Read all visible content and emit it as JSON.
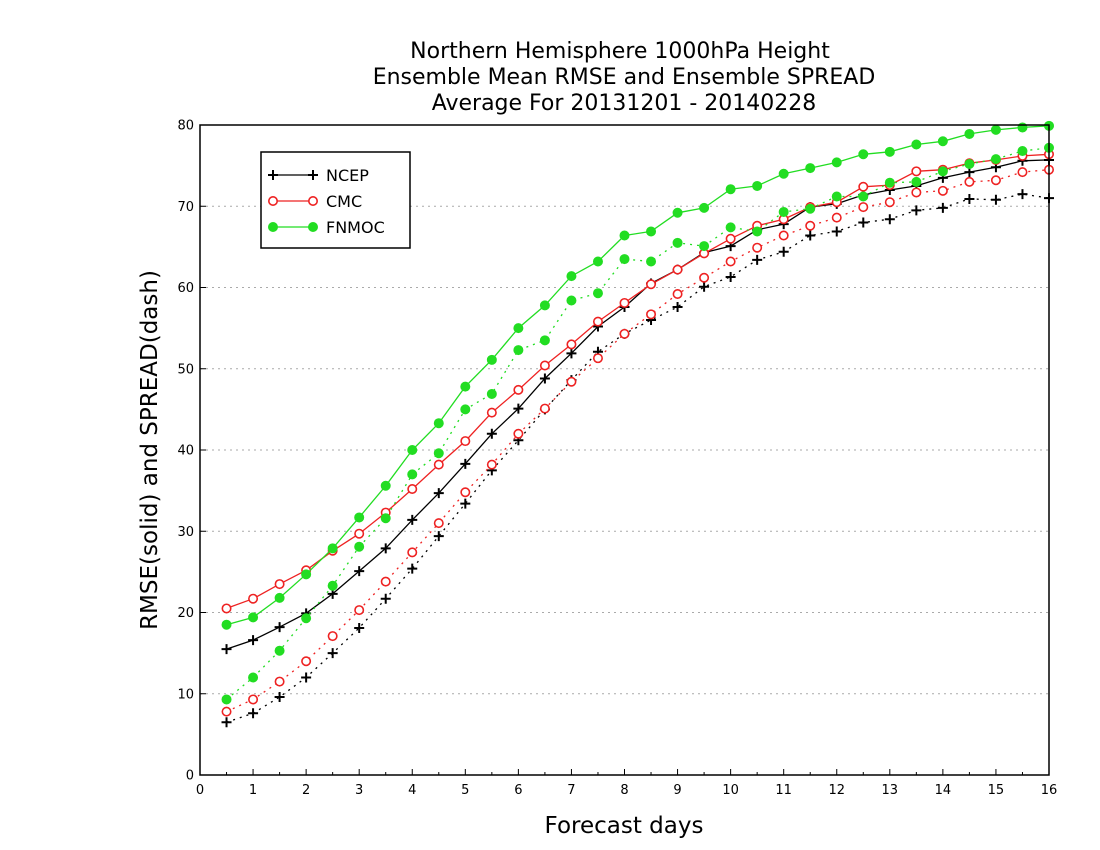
{
  "chart_data": {
    "type": "line",
    "title": [
      "Northern Hemisphere 1000hPa Height",
      "Ensemble Mean RMSE and Ensemble SPREAD",
      "Average For 20131201 - 20140228"
    ],
    "xlabel": "Forecast days",
    "ylabel": "RMSE(solid) and SPREAD(dash)",
    "xlim": [
      0,
      16
    ],
    "ylim": [
      0,
      80
    ],
    "xticks": [
      "0",
      "1",
      "2",
      "3",
      "4",
      "5",
      "6",
      "7",
      "8",
      "9",
      "10",
      "11",
      "12",
      "13",
      "14",
      "15",
      "16"
    ],
    "yticks": [
      "0",
      "10",
      "20",
      "30",
      "40",
      "50",
      "60",
      "70",
      "80"
    ],
    "grid": true,
    "legend_position": "top-left",
    "x": [
      0.5,
      1,
      1.5,
      2,
      2.5,
      3,
      3.5,
      4,
      4.5,
      5,
      5.5,
      6,
      6.5,
      7,
      7.5,
      8,
      8.5,
      9,
      9.5,
      10,
      10.5,
      11,
      11.5,
      12,
      12.5,
      13,
      13.5,
      14,
      14.5,
      15,
      15.5,
      16
    ],
    "series": [
      {
        "name": "NCEP",
        "color": "#000000",
        "marker": "plus",
        "rmse": [
          15.5,
          16.6,
          18.2,
          19.9,
          22.3,
          25.1,
          27.9,
          31.4,
          34.7,
          38.3,
          42.0,
          45.1,
          48.8,
          51.9,
          55.2,
          57.6,
          60.5,
          62.2,
          64.3,
          65.1,
          67.1,
          67.8,
          69.9,
          70.3,
          71.4,
          72.0,
          72.5,
          73.5,
          74.2,
          74.8,
          75.6,
          75.7
        ],
        "spread": [
          6.5,
          7.6,
          9.6,
          12.0,
          15.0,
          18.1,
          21.7,
          25.4,
          29.4,
          33.4,
          37.5,
          41.2,
          45.0,
          48.6,
          52.1,
          54.3,
          56.0,
          57.6,
          60.1,
          61.3,
          63.4,
          64.4,
          66.4,
          66.9,
          68.0,
          68.4,
          69.5,
          69.8,
          70.9,
          70.8,
          71.5,
          71.0
        ]
      },
      {
        "name": "CMC",
        "color": "#ee2222",
        "marker": "open-circle",
        "rmse": [
          20.5,
          21.7,
          23.5,
          25.2,
          27.6,
          29.7,
          32.3,
          35.2,
          38.2,
          41.1,
          44.6,
          47.4,
          50.4,
          53.0,
          55.8,
          58.1,
          60.4,
          62.2,
          64.2,
          66.0,
          67.6,
          68.4,
          69.9,
          70.5,
          72.4,
          72.6,
          74.3,
          74.5,
          75.3,
          75.7,
          76.2,
          76.4
        ],
        "spread": [
          7.8,
          9.3,
          11.5,
          14.0,
          17.1,
          20.3,
          23.8,
          27.4,
          31.0,
          34.8,
          38.2,
          42.0,
          45.1,
          48.4,
          51.3,
          54.3,
          56.7,
          59.2,
          61.2,
          63.2,
          64.9,
          66.4,
          67.6,
          68.6,
          69.9,
          70.5,
          71.7,
          71.9,
          73.0,
          73.2,
          74.2,
          74.5
        ]
      },
      {
        "name": "FNMOC",
        "color": "#22dd22",
        "marker": "filled-circle",
        "rmse": [
          18.5,
          19.4,
          21.8,
          24.7,
          27.9,
          31.7,
          35.6,
          40.0,
          43.3,
          47.8,
          51.1,
          55.0,
          57.8,
          61.4,
          63.2,
          66.4,
          66.9,
          69.2,
          69.8,
          72.1,
          72.5,
          74.0,
          74.7,
          75.4,
          76.4,
          76.7,
          77.6,
          78.0,
          78.9,
          79.4,
          79.7,
          79.9
        ],
        "spread": [
          9.3,
          12.0,
          15.3,
          19.3,
          23.3,
          28.1,
          31.6,
          37.0,
          39.6,
          45.0,
          46.9,
          52.3,
          53.5,
          58.4,
          59.3,
          63.5,
          63.2,
          65.5,
          65.1,
          67.4,
          66.9,
          69.3,
          69.7,
          71.2,
          71.2,
          72.9,
          73.0,
          74.3,
          75.2,
          75.8,
          76.8,
          77.2
        ]
      }
    ]
  }
}
